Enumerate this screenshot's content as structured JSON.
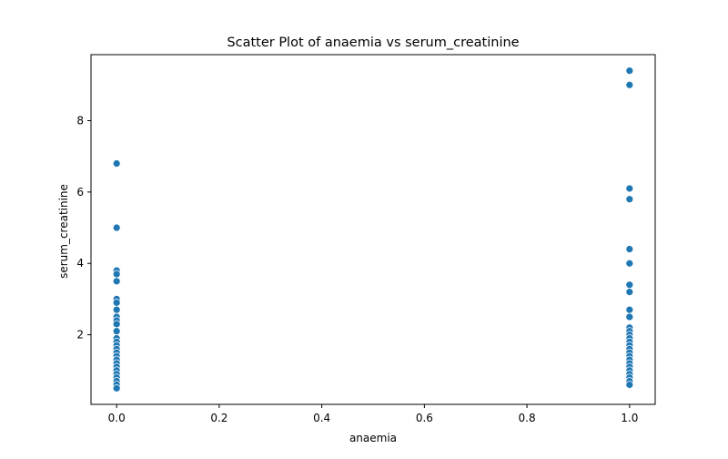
{
  "chart_data": {
    "type": "scatter",
    "title": "Scatter Plot of anaemia vs serum_creatinine",
    "xlabel": "anaemia",
    "ylabel": "serum_creatinine",
    "xlim": [
      -0.05,
      1.05
    ],
    "ylim": [
      0.05,
      9.85
    ],
    "xticks": [
      0.0,
      0.2,
      0.4,
      0.6,
      0.8,
      1.0
    ],
    "xtick_labels": [
      "0.0",
      "0.2",
      "0.4",
      "0.6",
      "0.8",
      "1.0"
    ],
    "yticks": [
      2,
      4,
      6,
      8
    ],
    "ytick_labels": [
      "2",
      "4",
      "6",
      "8"
    ],
    "grid": false,
    "marker_color": "#1f77b4",
    "points": [
      {
        "x": 0,
        "y": 6.8
      },
      {
        "x": 0,
        "y": 5.0
      },
      {
        "x": 0,
        "y": 3.8
      },
      {
        "x": 0,
        "y": 3.7
      },
      {
        "x": 0,
        "y": 3.5
      },
      {
        "x": 0,
        "y": 3.0
      },
      {
        "x": 0,
        "y": 2.9
      },
      {
        "x": 0,
        "y": 2.7
      },
      {
        "x": 0,
        "y": 2.5
      },
      {
        "x": 0,
        "y": 2.4
      },
      {
        "x": 0,
        "y": 2.3
      },
      {
        "x": 0,
        "y": 2.1
      },
      {
        "x": 0,
        "y": 1.9
      },
      {
        "x": 0,
        "y": 1.8
      },
      {
        "x": 0,
        "y": 1.7
      },
      {
        "x": 0,
        "y": 1.6
      },
      {
        "x": 0,
        "y": 1.5
      },
      {
        "x": 0,
        "y": 1.4
      },
      {
        "x": 0,
        "y": 1.3
      },
      {
        "x": 0,
        "y": 1.2
      },
      {
        "x": 0,
        "y": 1.1
      },
      {
        "x": 0,
        "y": 1.0
      },
      {
        "x": 0,
        "y": 0.9
      },
      {
        "x": 0,
        "y": 0.8
      },
      {
        "x": 0,
        "y": 0.7
      },
      {
        "x": 0,
        "y": 0.6
      },
      {
        "x": 0,
        "y": 0.5
      },
      {
        "x": 1,
        "y": 9.4
      },
      {
        "x": 1,
        "y": 9.0
      },
      {
        "x": 1,
        "y": 6.1
      },
      {
        "x": 1,
        "y": 5.8
      },
      {
        "x": 1,
        "y": 4.4
      },
      {
        "x": 1,
        "y": 4.0
      },
      {
        "x": 1,
        "y": 3.4
      },
      {
        "x": 1,
        "y": 3.2
      },
      {
        "x": 1,
        "y": 2.7
      },
      {
        "x": 1,
        "y": 2.5
      },
      {
        "x": 1,
        "y": 2.2
      },
      {
        "x": 1,
        "y": 2.1
      },
      {
        "x": 1,
        "y": 2.0
      },
      {
        "x": 1,
        "y": 1.9
      },
      {
        "x": 1,
        "y": 1.8
      },
      {
        "x": 1,
        "y": 1.7
      },
      {
        "x": 1,
        "y": 1.6
      },
      {
        "x": 1,
        "y": 1.5
      },
      {
        "x": 1,
        "y": 1.4
      },
      {
        "x": 1,
        "y": 1.3
      },
      {
        "x": 1,
        "y": 1.2
      },
      {
        "x": 1,
        "y": 1.1
      },
      {
        "x": 1,
        "y": 1.0
      },
      {
        "x": 1,
        "y": 0.9
      },
      {
        "x": 1,
        "y": 0.8
      },
      {
        "x": 1,
        "y": 0.7
      },
      {
        "x": 1,
        "y": 0.6
      }
    ]
  }
}
